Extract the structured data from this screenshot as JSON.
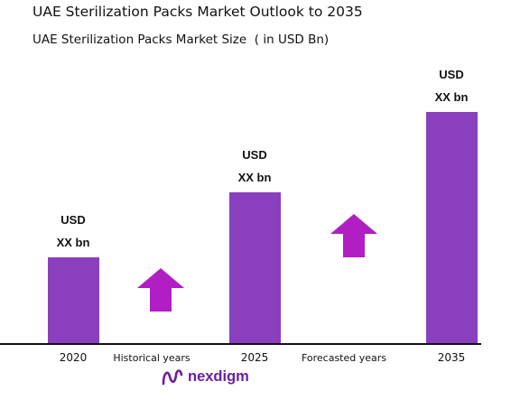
{
  "title": "UAE Sterilization Packs Market Outlook to 2035",
  "subtitle": "UAE Sterilization Packs Market Size  ( in USD Bn)",
  "chart_data": {
    "type": "bar",
    "title": "UAE Sterilization Packs Market Size  ( in USD Bn)",
    "categories": [
      "2020",
      "2025",
      "2035"
    ],
    "values": [
      1.0,
      1.75,
      2.68
    ],
    "data_labels": [
      [
        "USD",
        "XX bn"
      ],
      [
        "USD",
        "XX bn"
      ],
      [
        "USD",
        "XX bn"
      ]
    ],
    "period_labels": [
      "Historical years",
      "Forecasted years"
    ],
    "bar_color": "#8a3fbf",
    "arrow_color": "#b01ec4",
    "grid": false,
    "legend": "none"
  },
  "brand": {
    "name": "nexdigm",
    "color": "#6b1fa0",
    "icon": "nexdigm-logo-icon"
  }
}
